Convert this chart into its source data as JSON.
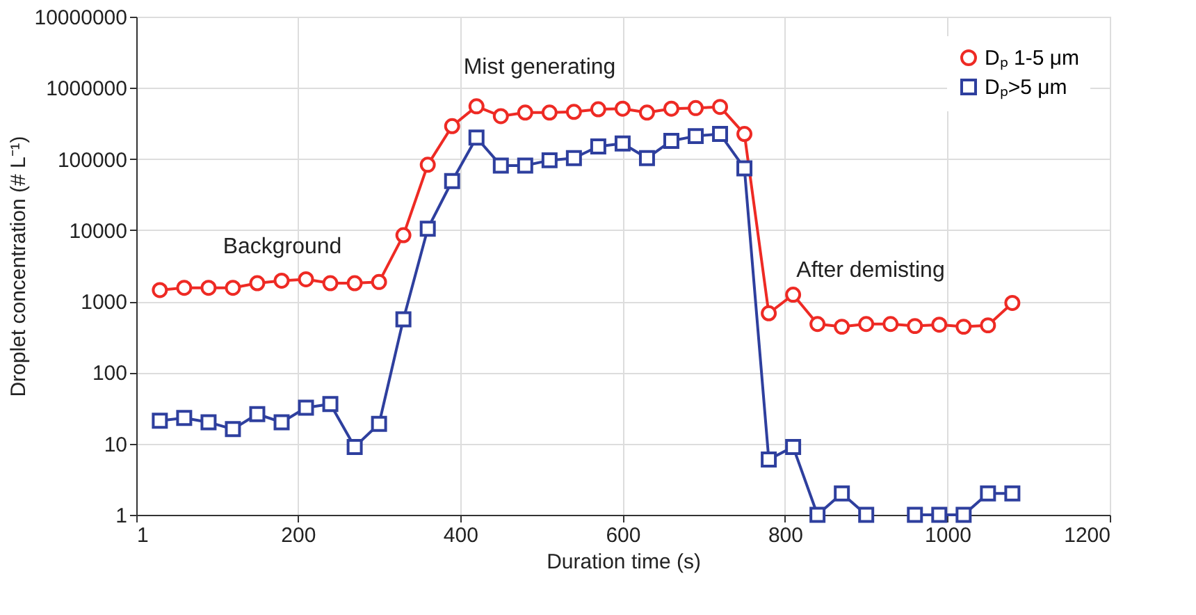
{
  "chart_data": {
    "type": "line",
    "xlabel": "Duration time (s)",
    "ylabel": "Droplet concentration (# L⁻¹)",
    "x": [
      30,
      60,
      90,
      120,
      150,
      180,
      210,
      240,
      270,
      300,
      330,
      360,
      390,
      420,
      450,
      480,
      510,
      540,
      570,
      600,
      630,
      660,
      690,
      720,
      750,
      780,
      810,
      840,
      870,
      900,
      930,
      960,
      990,
      1020,
      1050,
      1080
    ],
    "series": [
      {
        "name": "Dₚ 1-5 μm",
        "color": "#ee2a24",
        "marker": "circle",
        "values": [
          1440,
          1550,
          1550,
          1550,
          1800,
          1950,
          2040,
          1800,
          1800,
          1870,
          8500,
          83000,
          290000,
          550000,
          400000,
          450000,
          450000,
          460000,
          500000,
          510000,
          450000,
          510000,
          520000,
          540000,
          225000,
          680,
          1240,
          480,
          440,
          480,
          480,
          450,
          470,
          440,
          460,
          950
        ]
      },
      {
        "name": "Dₚ>5 μm",
        "color": "#2e3f9e",
        "marker": "square",
        "values": [
          21,
          23,
          20,
          16,
          26,
          20,
          32,
          36,
          9,
          19,
          560,
          10500,
          49000,
          200000,
          81000,
          81000,
          96000,
          103000,
          150000,
          165000,
          103000,
          180000,
          210000,
          225000,
          74000,
          6,
          9,
          1,
          2,
          1,
          null,
          1,
          1,
          1,
          2,
          2
        ]
      }
    ],
    "log": "y",
    "xlim": [
      1,
      1200
    ],
    "xticks": [
      1,
      200,
      400,
      600,
      800,
      1000,
      1200
    ],
    "ylim": [
      1,
      10000000
    ],
    "yticks": [
      1,
      10,
      100,
      1000,
      10000,
      100000,
      1000000,
      10000000
    ],
    "grid": true,
    "legend": "top right",
    "line_style": "solid",
    "annotations": [
      "Background",
      "Mist generating",
      "After demisting"
    ]
  }
}
